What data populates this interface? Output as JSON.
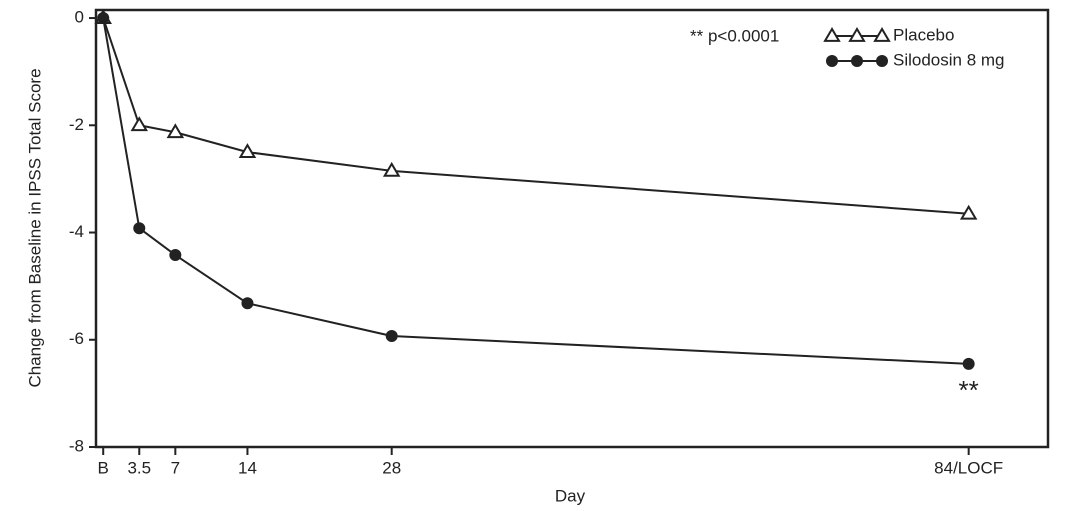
{
  "chart_data": {
    "type": "line",
    "y_label": "Change from Baseline in IPSS Total Score",
    "x_label": "Day",
    "x": [
      0,
      3.5,
      7,
      14,
      28,
      84
    ],
    "xlim": [
      -0.7,
      91.7
    ],
    "xticks": [
      {
        "value": 0,
        "label": "B"
      },
      3.5,
      7,
      14,
      28,
      {
        "value": 84,
        "label": "84/LOCF"
      }
    ],
    "ylim": [
      -8,
      0.15
    ],
    "yticks": [
      0,
      -2,
      -4,
      -6,
      -8
    ],
    "series": [
      {
        "name": "Placebo",
        "color": "#222222",
        "marker": "triangle-open",
        "values": [
          0,
          -2.0,
          -2.13,
          -2.5,
          -2.85,
          -3.65
        ]
      },
      {
        "name": "Silodosin 8 mg",
        "color": "#222222",
        "marker": "circle",
        "values": [
          0,
          -3.92,
          -4.42,
          -5.32,
          -5.93,
          -6.45
        ]
      }
    ],
    "annotations": [
      "** p<0.0001",
      "**"
    ]
  }
}
